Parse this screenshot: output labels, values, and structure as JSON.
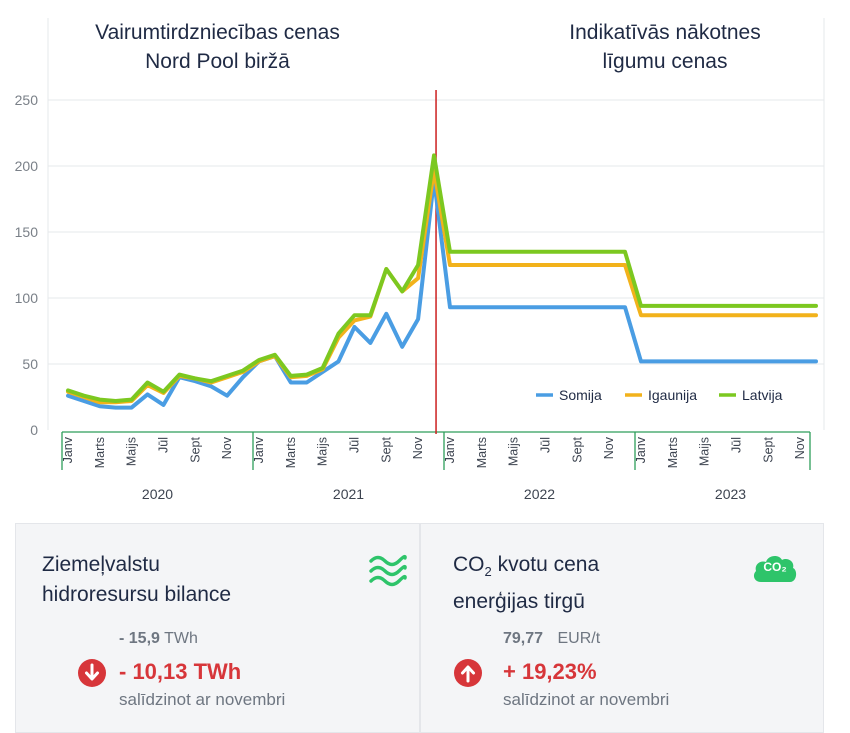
{
  "titles": {
    "left": [
      "Vairumtirdzniecības cenas",
      "Nord Pool biržā"
    ],
    "right": [
      "Indikatīvās nākotnes",
      "līgumu cenas"
    ]
  },
  "colors": {
    "Somija": "#4a9de3",
    "Igaunija": "#f2b21b",
    "Latvija": "#7cc820",
    "divider": "#cc1f1f",
    "axis": "#2e9e5b",
    "accent_red": "#d7363a",
    "accent_green": "#2ec46a"
  },
  "chart_data": {
    "type": "line",
    "ylim": [
      0,
      260
    ],
    "yticks": [
      0,
      50,
      100,
      150,
      200,
      250
    ],
    "grid": true,
    "legend_position": "bottom-right",
    "divider_index": 24,
    "x_labels": [
      "Janv",
      "",
      "Marts",
      "",
      "Maijs",
      "",
      "Jūl",
      "",
      "Sept",
      "",
      "Nov",
      "",
      "Janv",
      "",
      "Marts",
      "",
      "Maijs",
      "",
      "Jūl",
      "",
      "Sept",
      "",
      "Nov",
      "",
      "Janv",
      "",
      "Marts",
      "",
      "Maijs",
      "",
      "Jūl",
      "",
      "Sept",
      "",
      "Nov",
      "",
      "Janv",
      "",
      "Marts",
      "",
      "Maijs",
      "",
      "Jūl",
      "",
      "Sept",
      "",
      "Nov",
      ""
    ],
    "years": [
      "2020",
      "2021",
      "2022",
      "2023"
    ],
    "series": [
      {
        "name": "Somija",
        "values": [
          26,
          22,
          18,
          17,
          17,
          27,
          19,
          40,
          37,
          33,
          26,
          40,
          52,
          56,
          36,
          36,
          44,
          52,
          78,
          66,
          88,
          63,
          84,
          190,
          93,
          93,
          93,
          93,
          93,
          93,
          93,
          93,
          93,
          93,
          93,
          93,
          52,
          52,
          52,
          52,
          52,
          52,
          52,
          52,
          52,
          52,
          52,
          52
        ]
      },
      {
        "name": "Igaunija",
        "values": [
          29,
          25,
          21,
          21,
          22,
          34,
          28,
          41,
          39,
          36,
          40,
          44,
          52,
          56,
          40,
          41,
          46,
          70,
          83,
          86,
          122,
          105,
          115,
          197,
          125,
          125,
          125,
          125,
          125,
          125,
          125,
          125,
          125,
          125,
          125,
          125,
          87,
          87,
          87,
          87,
          87,
          87,
          87,
          87,
          87,
          87,
          87,
          87
        ]
      },
      {
        "name": "Latvija",
        "values": [
          30,
          26,
          23,
          22,
          23,
          36,
          29,
          42,
          39,
          37,
          41,
          45,
          53,
          57,
          41,
          42,
          47,
          73,
          87,
          87,
          122,
          105,
          125,
          208,
          135,
          135,
          135,
          135,
          135,
          135,
          135,
          135,
          135,
          135,
          135,
          135,
          94,
          94,
          94,
          94,
          94,
          94,
          94,
          94,
          94,
          94,
          94,
          94
        ]
      }
    ]
  },
  "panels": {
    "hydro": {
      "title": [
        "Ziemeļvalstu",
        "hidroresursu bilance"
      ],
      "ref_value": "- 15,9",
      "ref_unit": "TWh",
      "change": "- 10,13 TWh",
      "compare": "salīdzinot ar novembri",
      "icon": "waves-icon"
    },
    "co2": {
      "title_prefix": "CO",
      "title_sub": "2",
      "title_suffix": " kvotu cena",
      "title_line2": "enerģijas tirgū",
      "ref_value": "79,77",
      "ref_unit": "EUR/t",
      "change": "+ 19,23%",
      "compare": "salīdzinot ar novembri",
      "icon": "co2-cloud-icon",
      "icon_text": "CO₂"
    }
  }
}
